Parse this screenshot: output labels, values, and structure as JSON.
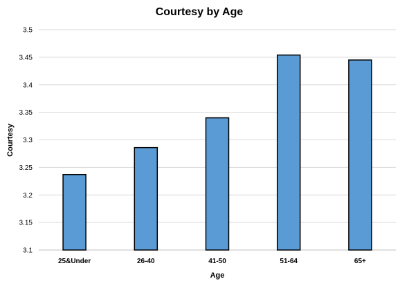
{
  "chart_data": {
    "type": "bar",
    "title": "Courtesy by Age",
    "xlabel": "Age",
    "ylabel": "Courtesy",
    "categories": [
      "25&Under",
      "26-40",
      "41-50",
      "51-64",
      "65+"
    ],
    "values": [
      3.237,
      3.286,
      3.34,
      3.454,
      3.445
    ],
    "ylim": [
      3.1,
      3.5
    ],
    "yticks": [
      "3.1",
      "3.15",
      "3.2",
      "3.25",
      "3.3",
      "3.35",
      "3.4",
      "3.45",
      "3.5"
    ],
    "grid": true,
    "legend": "none",
    "colors": {
      "bar_fill": "#5b9bd5",
      "bar_stroke": "#000000",
      "grid": "#d9d9d9"
    }
  }
}
